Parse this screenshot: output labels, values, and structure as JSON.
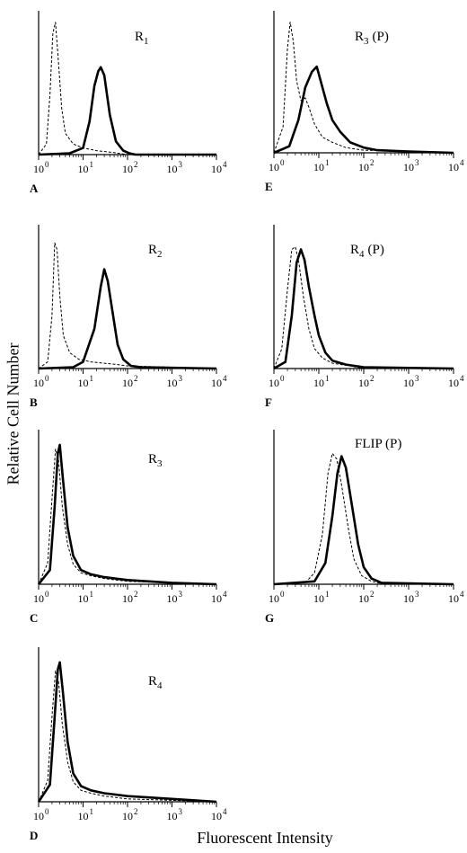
{
  "figure": {
    "ylabel": "Relative Cell Number",
    "xlabel": "Fluorescent Intensity"
  },
  "chart_data": [
    {
      "panel": "A",
      "title_base": "R",
      "title_sub": "1",
      "title_suffix": "",
      "type": "line",
      "xscale": "log",
      "xlim": [
        1,
        10000
      ],
      "x_ticks": [
        "0",
        "1",
        "2",
        "3",
        "4"
      ],
      "series": [
        {
          "style": "dashed",
          "curve": [
            [
              1.0,
              0
            ],
            [
              1.5,
              0.08
            ],
            [
              1.8,
              0.45
            ],
            [
              2.1,
              0.92
            ],
            [
              2.4,
              1.0
            ],
            [
              2.8,
              0.7
            ],
            [
              3.3,
              0.35
            ],
            [
              4,
              0.16
            ],
            [
              6,
              0.08
            ],
            [
              10,
              0.05
            ],
            [
              20,
              0.03
            ],
            [
              50,
              0.015
            ],
            [
              100,
              0
            ],
            [
              10000,
              0
            ]
          ]
        },
        {
          "style": "solid",
          "curve": [
            [
              1.0,
              0
            ],
            [
              5,
              0.01
            ],
            [
              10,
              0.05
            ],
            [
              14,
              0.25
            ],
            [
              18,
              0.52
            ],
            [
              22,
              0.63
            ],
            [
              25,
              0.66
            ],
            [
              30,
              0.6
            ],
            [
              40,
              0.3
            ],
            [
              55,
              0.1
            ],
            [
              80,
              0.03
            ],
            [
              110,
              0.01
            ],
            [
              150,
              0
            ],
            [
              10000,
              0
            ]
          ]
        }
      ]
    },
    {
      "panel": "B",
      "title_base": "R",
      "title_sub": "2",
      "title_suffix": "",
      "type": "line",
      "xscale": "log",
      "xlim": [
        1,
        10000
      ],
      "x_ticks": [
        "0",
        "1",
        "2",
        "3",
        "4"
      ],
      "series": [
        {
          "style": "dashed",
          "curve": [
            [
              1.0,
              0
            ],
            [
              1.6,
              0.05
            ],
            [
              2.0,
              0.4
            ],
            [
              2.3,
              0.95
            ],
            [
              2.6,
              0.9
            ],
            [
              3,
              0.55
            ],
            [
              3.6,
              0.25
            ],
            [
              5,
              0.12
            ],
            [
              8,
              0.07
            ],
            [
              15,
              0.05
            ],
            [
              30,
              0.04
            ],
            [
              60,
              0.03
            ],
            [
              100,
              0.02
            ],
            [
              1000,
              0.01
            ],
            [
              10000,
              0
            ]
          ]
        },
        {
          "style": "solid",
          "curve": [
            [
              1.0,
              0
            ],
            [
              6,
              0.01
            ],
            [
              10,
              0.05
            ],
            [
              18,
              0.3
            ],
            [
              25,
              0.62
            ],
            [
              30,
              0.75
            ],
            [
              36,
              0.66
            ],
            [
              45,
              0.45
            ],
            [
              60,
              0.18
            ],
            [
              80,
              0.07
            ],
            [
              120,
              0.02
            ],
            [
              200,
              0.01
            ],
            [
              10000,
              0
            ]
          ]
        }
      ]
    },
    {
      "panel": "C",
      "title_base": "R",
      "title_sub": "3",
      "title_suffix": "",
      "type": "line",
      "xscale": "log",
      "xlim": [
        1,
        10000
      ],
      "x_ticks": [
        "0",
        "1",
        "2",
        "3",
        "4"
      ],
      "series": [
        {
          "style": "dashed",
          "curve": [
            [
              1.0,
              0
            ],
            [
              1.6,
              0.15
            ],
            [
              2.0,
              0.6
            ],
            [
              2.4,
              0.95
            ],
            [
              2.8,
              0.88
            ],
            [
              3.4,
              0.55
            ],
            [
              4.5,
              0.28
            ],
            [
              6,
              0.14
            ],
            [
              9,
              0.08
            ],
            [
              15,
              0.06
            ],
            [
              30,
              0.04
            ],
            [
              100,
              0.02
            ],
            [
              1000,
              0.01
            ],
            [
              10000,
              0
            ]
          ]
        },
        {
          "style": "solid",
          "curve": [
            [
              1.0,
              0
            ],
            [
              1.8,
              0.1
            ],
            [
              2.3,
              0.55
            ],
            [
              2.7,
              0.92
            ],
            [
              3.0,
              0.98
            ],
            [
              3.5,
              0.75
            ],
            [
              4.5,
              0.4
            ],
            [
              6,
              0.2
            ],
            [
              9,
              0.1
            ],
            [
              15,
              0.07
            ],
            [
              30,
              0.05
            ],
            [
              100,
              0.03
            ],
            [
              1000,
              0.01
            ],
            [
              10000,
              0
            ]
          ]
        }
      ]
    },
    {
      "panel": "D",
      "title_base": "R",
      "title_sub": "4",
      "title_suffix": "",
      "type": "line",
      "xscale": "log",
      "xlim": [
        1,
        10000
      ],
      "x_ticks": [
        "0",
        "1",
        "2",
        "3",
        "4"
      ],
      "series": [
        {
          "style": "dashed",
          "curve": [
            [
              1.0,
              0
            ],
            [
              1.6,
              0.15
            ],
            [
              2.0,
              0.6
            ],
            [
              2.4,
              0.92
            ],
            [
              2.8,
              0.85
            ],
            [
              3.4,
              0.55
            ],
            [
              4.5,
              0.28
            ],
            [
              6,
              0.14
            ],
            [
              9,
              0.08
            ],
            [
              15,
              0.06
            ],
            [
              30,
              0.04
            ],
            [
              100,
              0.02
            ],
            [
              1000,
              0.01
            ],
            [
              10000,
              0
            ]
          ]
        },
        {
          "style": "solid",
          "curve": [
            [
              1.0,
              0
            ],
            [
              1.8,
              0.12
            ],
            [
              2.3,
              0.6
            ],
            [
              2.7,
              0.93
            ],
            [
              3.0,
              0.98
            ],
            [
              3.5,
              0.78
            ],
            [
              4.5,
              0.42
            ],
            [
              6,
              0.2
            ],
            [
              9,
              0.11
            ],
            [
              15,
              0.08
            ],
            [
              30,
              0.06
            ],
            [
              100,
              0.04
            ],
            [
              1000,
              0.02
            ],
            [
              10000,
              0
            ]
          ]
        }
      ]
    },
    {
      "panel": "E",
      "title_base": "R",
      "title_sub": "3",
      "title_suffix": "(P)",
      "type": "line",
      "xscale": "log",
      "xlim": [
        1,
        10000
      ],
      "x_ticks": [
        "0",
        "1",
        "2",
        "3",
        "4"
      ],
      "series": [
        {
          "style": "dashed",
          "curve": [
            [
              1.0,
              0
            ],
            [
              1.6,
              0.2
            ],
            [
              2.0,
              0.8
            ],
            [
              2.3,
              1.0
            ],
            [
              2.7,
              0.85
            ],
            [
              3.2,
              0.55
            ],
            [
              4,
              0.4
            ],
            [
              5,
              0.42
            ],
            [
              6,
              0.35
            ],
            [
              8,
              0.22
            ],
            [
              12,
              0.12
            ],
            [
              20,
              0.08
            ],
            [
              40,
              0.04
            ],
            [
              100,
              0.02
            ],
            [
              1000,
              0.01
            ],
            [
              10000,
              0
            ]
          ]
        },
        {
          "style": "solid",
          "curve": [
            [
              1.0,
              0
            ],
            [
              2.2,
              0.05
            ],
            [
              3.5,
              0.25
            ],
            [
              5,
              0.5
            ],
            [
              7,
              0.62
            ],
            [
              9,
              0.66
            ],
            [
              11,
              0.55
            ],
            [
              15,
              0.38
            ],
            [
              20,
              0.25
            ],
            [
              30,
              0.16
            ],
            [
              50,
              0.08
            ],
            [
              100,
              0.04
            ],
            [
              200,
              0.02
            ],
            [
              1000,
              0.01
            ],
            [
              10000,
              0
            ]
          ]
        }
      ]
    },
    {
      "panel": "F",
      "title_base": "R",
      "title_sub": "4",
      "title_suffix": "(P)",
      "type": "line",
      "xscale": "log",
      "xlim": [
        1,
        10000
      ],
      "x_ticks": [
        "0",
        "1",
        "2",
        "3",
        "4"
      ],
      "series": [
        {
          "style": "dashed",
          "curve": [
            [
              1.0,
              0
            ],
            [
              1.5,
              0.15
            ],
            [
              2.0,
              0.6
            ],
            [
              2.5,
              0.9
            ],
            [
              3.0,
              0.92
            ],
            [
              3.6,
              0.8
            ],
            [
              4.5,
              0.55
            ],
            [
              6,
              0.3
            ],
            [
              8,
              0.15
            ],
            [
              12,
              0.08
            ],
            [
              20,
              0.04
            ],
            [
              50,
              0.02
            ],
            [
              100,
              0
            ],
            [
              10000,
              0
            ]
          ]
        },
        {
          "style": "solid",
          "curve": [
            [
              1.0,
              0
            ],
            [
              1.8,
              0.05
            ],
            [
              2.5,
              0.4
            ],
            [
              3.2,
              0.8
            ],
            [
              4.0,
              0.9
            ],
            [
              4.8,
              0.82
            ],
            [
              6,
              0.62
            ],
            [
              8,
              0.4
            ],
            [
              10,
              0.25
            ],
            [
              14,
              0.12
            ],
            [
              20,
              0.06
            ],
            [
              40,
              0.03
            ],
            [
              100,
              0.01
            ],
            [
              10000,
              0
            ]
          ]
        }
      ]
    },
    {
      "panel": "G",
      "title_base": "FLIP (P)",
      "title_sub": "",
      "title_suffix": "",
      "type": "line",
      "xscale": "log",
      "xlim": [
        1,
        10000
      ],
      "x_ticks": [
        "0",
        "1",
        "2",
        "3",
        "4"
      ],
      "series": [
        {
          "style": "dashed",
          "curve": [
            [
              1.0,
              0
            ],
            [
              5,
              0.01
            ],
            [
              8,
              0.08
            ],
            [
              12,
              0.35
            ],
            [
              16,
              0.78
            ],
            [
              20,
              0.92
            ],
            [
              25,
              0.88
            ],
            [
              32,
              0.7
            ],
            [
              45,
              0.4
            ],
            [
              60,
              0.18
            ],
            [
              90,
              0.06
            ],
            [
              150,
              0.02
            ],
            [
              300,
              0
            ],
            [
              10000,
              0
            ]
          ]
        },
        {
          "style": "solid",
          "curve": [
            [
              1.0,
              0
            ],
            [
              8,
              0.02
            ],
            [
              14,
              0.15
            ],
            [
              20,
              0.48
            ],
            [
              26,
              0.78
            ],
            [
              32,
              0.9
            ],
            [
              40,
              0.82
            ],
            [
              55,
              0.55
            ],
            [
              75,
              0.28
            ],
            [
              100,
              0.12
            ],
            [
              150,
              0.04
            ],
            [
              250,
              0.01
            ],
            [
              10000,
              0
            ]
          ]
        }
      ]
    }
  ]
}
